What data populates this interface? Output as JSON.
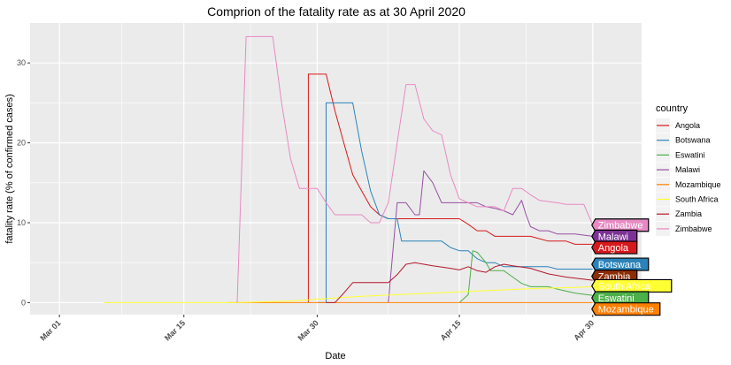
{
  "chart_data": {
    "type": "line",
    "title": "Comprion of the fatality rate as at 30 April 2020",
    "xlabel": "Date",
    "ylabel": "fatality rate (% of confirmed cases)",
    "x_ticks": [
      "Mar 01",
      "Mar 15",
      "Mar 30",
      "Apr 15",
      "Apr 30"
    ],
    "x_tick_days": [
      0,
      14,
      29,
      45,
      60
    ],
    "xlim_days": [
      -3.3,
      65.5
    ],
    "y_ticks": [
      0,
      10,
      20,
      30
    ],
    "ylim": [
      -1.5,
      35
    ],
    "grid": true,
    "legend": {
      "title": "country",
      "position": "right"
    },
    "series": [
      {
        "name": "Angola",
        "color": "#d7191c",
        "points": [
          [
            28,
            0
          ],
          [
            28,
            28.6
          ],
          [
            30,
            28.6
          ],
          [
            31,
            24
          ],
          [
            32,
            20
          ],
          [
            33,
            16
          ],
          [
            34,
            14
          ],
          [
            35,
            12
          ],
          [
            36,
            11
          ],
          [
            37,
            10.5
          ],
          [
            40,
            10.5
          ],
          [
            45,
            10.5
          ],
          [
            46,
            9.8
          ],
          [
            47,
            9
          ],
          [
            48,
            9
          ],
          [
            49,
            8.3
          ],
          [
            53,
            8.3
          ],
          [
            54,
            8
          ],
          [
            55,
            7.7
          ],
          [
            57,
            7.7
          ],
          [
            58,
            7.3
          ],
          [
            60,
            7.3
          ]
        ]
      },
      {
        "name": "Botswana",
        "color": "#2b83ba",
        "points": [
          [
            29,
            0
          ],
          [
            30,
            0
          ],
          [
            30,
            25
          ],
          [
            33,
            25
          ],
          [
            34,
            19
          ],
          [
            35,
            14
          ],
          [
            36,
            11
          ],
          [
            37,
            10.5
          ],
          [
            38,
            10.5
          ],
          [
            38.5,
            7.7
          ],
          [
            43,
            7.7
          ],
          [
            44,
            6.9
          ],
          [
            45,
            6.5
          ],
          [
            46,
            6.5
          ],
          [
            47,
            5.5
          ],
          [
            48,
            5
          ],
          [
            49,
            5
          ],
          [
            50,
            4.5
          ],
          [
            55,
            4.5
          ],
          [
            56,
            4.2
          ],
          [
            60,
            4.2
          ]
        ]
      },
      {
        "name": "Eswatini",
        "color": "#4daf4a",
        "points": [
          [
            45,
            0
          ],
          [
            46,
            1
          ],
          [
            46.5,
            6.5
          ],
          [
            47,
            6.3
          ],
          [
            48,
            5
          ],
          [
            48.5,
            4
          ],
          [
            50,
            4
          ],
          [
            51,
            3.2
          ],
          [
            52,
            2.4
          ],
          [
            53,
            2
          ],
          [
            55,
            2
          ],
          [
            56,
            1.7
          ],
          [
            58,
            1.2
          ],
          [
            60,
            0.9
          ]
        ]
      },
      {
        "name": "Malawi",
        "color": "#984ea3",
        "points": [
          [
            37,
            0
          ],
          [
            38,
            12.5
          ],
          [
            39,
            12.5
          ],
          [
            40,
            11
          ],
          [
            40.5,
            11
          ],
          [
            41,
            16.5
          ],
          [
            42,
            15
          ],
          [
            43,
            12.5
          ],
          [
            45,
            12.5
          ],
          [
            47,
            12.5
          ],
          [
            48,
            12
          ],
          [
            49,
            11.8
          ],
          [
            50,
            11.5
          ],
          [
            51,
            11
          ],
          [
            52,
            12.8
          ],
          [
            52.5,
            11
          ],
          [
            53,
            9.5
          ],
          [
            54,
            9
          ],
          [
            55,
            9
          ],
          [
            56,
            8.6
          ],
          [
            58,
            8.6
          ],
          [
            60,
            8.3
          ]
        ]
      },
      {
        "name": "Mozambique",
        "color": "#ff7f00",
        "points": [
          [
            19,
            0
          ],
          [
            60,
            0
          ]
        ]
      },
      {
        "name": "South Africa",
        "color": "#ffff33",
        "points": [
          [
            5,
            0
          ],
          [
            20,
            0
          ],
          [
            26,
            0.2
          ],
          [
            30,
            0.5
          ],
          [
            34,
            0.8
          ],
          [
            38,
            1
          ],
          [
            42,
            1.2
          ],
          [
            46,
            1.4
          ],
          [
            50,
            1.6
          ],
          [
            54,
            1.8
          ],
          [
            58,
            1.9
          ],
          [
            60,
            2
          ]
        ]
      },
      {
        "name": "Zambia",
        "color": "#b2182b",
        "points": [
          [
            30,
            0
          ],
          [
            31,
            0
          ],
          [
            32,
            1.2
          ],
          [
            33,
            2.5
          ],
          [
            37,
            2.5
          ],
          [
            38,
            3.5
          ],
          [
            39,
            4.8
          ],
          [
            40,
            5
          ],
          [
            42,
            4.6
          ],
          [
            44,
            4.3
          ],
          [
            45,
            4.1
          ],
          [
            46,
            4.5
          ],
          [
            47,
            4
          ],
          [
            48,
            3.8
          ],
          [
            49,
            4.5
          ],
          [
            50,
            4.8
          ],
          [
            51,
            4.6
          ],
          [
            53,
            4.3
          ],
          [
            55,
            3.6
          ],
          [
            57,
            3.2
          ],
          [
            60,
            2.8
          ]
        ]
      },
      {
        "name": "Zimbabwe",
        "color": "#e78ac3",
        "points": [
          [
            20,
            0
          ],
          [
            21,
            33.3
          ],
          [
            24,
            33.3
          ],
          [
            25,
            25
          ],
          [
            26,
            18
          ],
          [
            27,
            14.3
          ],
          [
            29,
            14.3
          ],
          [
            30,
            12.5
          ],
          [
            31,
            11
          ],
          [
            34,
            11
          ],
          [
            35,
            10
          ],
          [
            36,
            10
          ],
          [
            37,
            12.5
          ],
          [
            38,
            20
          ],
          [
            39,
            27.3
          ],
          [
            40,
            27.3
          ],
          [
            41,
            23
          ],
          [
            42,
            21.5
          ],
          [
            43,
            21
          ],
          [
            44,
            16
          ],
          [
            45,
            13
          ],
          [
            46,
            12.5
          ],
          [
            47,
            12
          ],
          [
            49,
            12
          ],
          [
            50,
            11.5
          ],
          [
            51,
            14.3
          ],
          [
            52,
            14.3
          ],
          [
            53,
            13.5
          ],
          [
            54,
            12.8
          ],
          [
            56,
            12.5
          ],
          [
            57,
            12.3
          ],
          [
            59,
            12.3
          ],
          [
            60,
            9.7
          ]
        ]
      }
    ],
    "end_labels": [
      {
        "text": "Zimbabwe",
        "fill": "#e78ac3",
        "border": "#000000",
        "y": 9.7
      },
      {
        "text": "Malawi",
        "fill": "#7b3294",
        "border": "#000000",
        "y": 8.3
      },
      {
        "text": "Angola",
        "fill": "#d7191c",
        "border": "#000000",
        "y": 6.9
      },
      {
        "text": "Botswana",
        "fill": "#2b83ba",
        "border": "#000000",
        "y": 4.8
      },
      {
        "text": "Zambia",
        "fill": "#8c2d04",
        "border": "#000000",
        "y": 3.3
      },
      {
        "text": "South Africa",
        "fill": "#ffff33",
        "border": "#000000",
        "y": 2.1
      },
      {
        "text": "Eswatini",
        "fill": "#4daf4a",
        "border": "#000000",
        "y": 0.6
      },
      {
        "text": "Mozambique",
        "fill": "#ff7f00",
        "border": "#000000",
        "y": -0.8
      }
    ]
  }
}
